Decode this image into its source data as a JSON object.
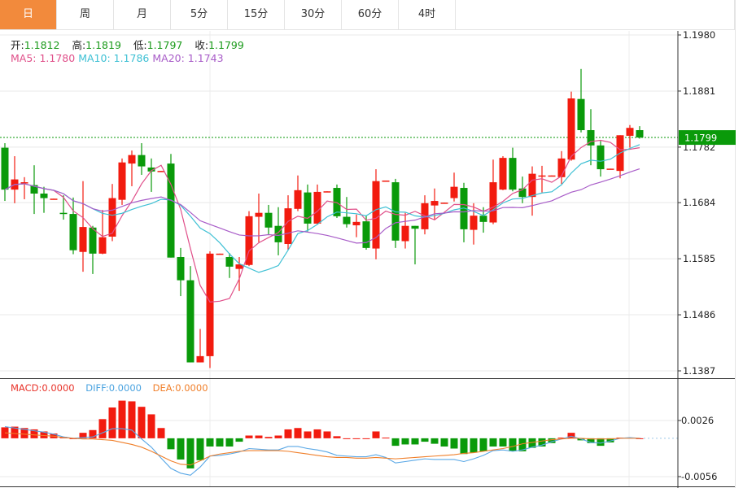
{
  "tabs": [
    {
      "label": "日",
      "active": true
    },
    {
      "label": "周",
      "active": false
    },
    {
      "label": "月",
      "active": false
    },
    {
      "label": "5分",
      "active": false
    },
    {
      "label": "15分",
      "active": false
    },
    {
      "label": "30分",
      "active": false
    },
    {
      "label": "60分",
      "active": false
    },
    {
      "label": "4时",
      "active": false
    }
  ],
  "ohlc_info": {
    "open_label": "开:",
    "open": "1.1812",
    "high_label": "高:",
    "high": "1.1819",
    "low_label": "低:",
    "low": "1.1797",
    "close_label": "收:",
    "close": "1.1799"
  },
  "ma_info": {
    "ma5": "MA5: 1.1780",
    "ma10": "MA10: 1.1786",
    "ma20": "MA20: 1.1743"
  },
  "macd_info": {
    "macd": "MACD:0.0000",
    "diff": "DIFF:0.0000",
    "dea": "DEA:0.0000"
  },
  "colors": {
    "up": "#f21b0f",
    "down": "#0a9a0a",
    "ma5": "#e0508a",
    "ma10": "#3ec0d4",
    "ma20": "#a85cc8",
    "diff": "#5aa8e6",
    "dea": "#f07f2a",
    "active_tab": "#f28a3c",
    "last_price": "#0a9a0a"
  },
  "chart_data": [
    {
      "type": "candlestick",
      "price_ticks": [
        "1.1980",
        "1.1881",
        "1.1782",
        "1.1684",
        "1.1585",
        "1.1486",
        "1.1387"
      ],
      "ylim": [
        1.1387,
        1.198
      ],
      "last_price_label": "1.1799",
      "grid": true,
      "ma_periods": [
        5,
        10,
        20
      ],
      "candles_ohlc": [
        [
          1.1781,
          1.1789,
          1.1687,
          1.1707
        ],
        [
          1.1707,
          1.1766,
          1.1683,
          1.1725
        ],
        [
          1.1719,
          1.1729,
          1.169,
          1.172
        ],
        [
          1.1715,
          1.175,
          1.1664,
          1.17
        ],
        [
          1.17,
          1.1712,
          1.1666,
          1.1692
        ],
        [
          1.169,
          1.1691,
          1.169,
          1.1691
        ],
        [
          1.1666,
          1.1697,
          1.1654,
          1.1664
        ],
        [
          1.1664,
          1.1693,
          1.1593,
          1.16
        ],
        [
          1.1597,
          1.1722,
          1.1562,
          1.1641
        ],
        [
          1.164,
          1.1643,
          1.1558,
          1.1594
        ],
        [
          1.1594,
          1.1671,
          1.1593,
          1.1623
        ],
        [
          1.1624,
          1.1717,
          1.1616,
          1.1692
        ],
        [
          1.1689,
          1.1762,
          1.168,
          1.1755
        ],
        [
          1.1753,
          1.1776,
          1.1713,
          1.1768
        ],
        [
          1.1768,
          1.1789,
          1.1733,
          1.1748
        ],
        [
          1.1746,
          1.1762,
          1.1703,
          1.1739
        ],
        [
          1.1739,
          1.174,
          1.1739,
          1.174
        ],
        [
          1.1753,
          1.177,
          1.1587,
          1.1587
        ],
        [
          1.1588,
          1.1604,
          1.1519,
          1.1547
        ],
        [
          1.1547,
          1.1572,
          1.1402,
          1.1402
        ],
        [
          1.1402,
          1.1461,
          1.1402,
          1.1413
        ],
        [
          1.1413,
          1.1598,
          1.1392,
          1.1594
        ],
        [
          1.1593,
          1.1594,
          1.1593,
          1.1594
        ],
        [
          1.1588,
          1.1595,
          1.1551,
          1.1571
        ],
        [
          1.1567,
          1.1588,
          1.1528,
          1.1575
        ],
        [
          1.1574,
          1.1669,
          1.1572,
          1.166
        ],
        [
          1.1659,
          1.17,
          1.1614,
          1.1666
        ],
        [
          1.1666,
          1.168,
          1.1628,
          1.164
        ],
        [
          1.1643,
          1.1676,
          1.1591,
          1.1614
        ],
        [
          1.1611,
          1.1697,
          1.1601,
          1.1674
        ],
        [
          1.1673,
          1.1732,
          1.1669,
          1.1706
        ],
        [
          1.1702,
          1.1716,
          1.1633,
          1.1647
        ],
        [
          1.1647,
          1.1716,
          1.1646,
          1.1703
        ],
        [
          1.1703,
          1.1704,
          1.1703,
          1.1704
        ],
        [
          1.171,
          1.1716,
          1.1657,
          1.166
        ],
        [
          1.1659,
          1.1694,
          1.164,
          1.1646
        ],
        [
          1.1644,
          1.1663,
          1.1623,
          1.165
        ],
        [
          1.1651,
          1.1661,
          1.1601,
          1.1604
        ],
        [
          1.1603,
          1.1743,
          1.1584,
          1.1722
        ],
        [
          1.1722,
          1.1723,
          1.1722,
          1.1723
        ],
        [
          1.172,
          1.1726,
          1.1604,
          1.1617
        ],
        [
          1.1616,
          1.1666,
          1.1603,
          1.1643
        ],
        [
          1.1643,
          1.1643,
          1.1575,
          1.1638
        ],
        [
          1.1637,
          1.1697,
          1.1628,
          1.1683
        ],
        [
          1.1679,
          1.1709,
          1.1654,
          1.1687
        ],
        [
          1.1683,
          1.1684,
          1.1683,
          1.1684
        ],
        [
          1.1692,
          1.1737,
          1.1686,
          1.1712
        ],
        [
          1.171,
          1.1719,
          1.1614,
          1.1637
        ],
        [
          1.1636,
          1.1683,
          1.161,
          1.1661
        ],
        [
          1.1661,
          1.1676,
          1.1631,
          1.165
        ],
        [
          1.1649,
          1.176,
          1.1646,
          1.172
        ],
        [
          1.1707,
          1.1766,
          1.1706,
          1.1763
        ],
        [
          1.1763,
          1.1781,
          1.1704,
          1.1707
        ],
        [
          1.1709,
          1.173,
          1.1683,
          1.1694
        ],
        [
          1.1694,
          1.1748,
          1.1661,
          1.1735
        ],
        [
          1.1731,
          1.1749,
          1.1702,
          1.1732
        ],
        [
          1.1731,
          1.1732,
          1.1731,
          1.1732
        ],
        [
          1.1729,
          1.1775,
          1.1717,
          1.1762
        ],
        [
          1.176,
          1.188,
          1.1758,
          1.1868
        ],
        [
          1.1867,
          1.192,
          1.1808,
          1.1812
        ],
        [
          1.1812,
          1.1849,
          1.175,
          1.1785
        ],
        [
          1.1785,
          1.1793,
          1.173,
          1.1743
        ],
        [
          1.1743,
          1.1744,
          1.1743,
          1.1744
        ],
        [
          1.174,
          1.1803,
          1.1727,
          1.1803
        ],
        [
          1.1802,
          1.1821,
          1.1781,
          1.1816
        ],
        [
          1.1812,
          1.1819,
          1.1797,
          1.1799
        ]
      ]
    },
    {
      "type": "macd",
      "ticks": [
        "0.0026",
        "-0.0056"
      ],
      "ylim": [
        -0.0056,
        0.0026
      ],
      "macd": [
        0.0016,
        0.0017,
        0.0015,
        0.0013,
        0.001,
        0.0007,
        0.0002,
        0.0,
        0.0008,
        0.0012,
        0.0028,
        0.0045,
        0.0055,
        0.0054,
        0.0046,
        0.0035,
        0.0015,
        -0.0016,
        -0.0031,
        -0.0044,
        -0.0032,
        -0.0012,
        -0.0012,
        -0.0012,
        -0.0005,
        0.0004,
        0.0004,
        0.0002,
        0.0004,
        0.0013,
        0.0015,
        0.001,
        0.0013,
        0.001,
        0.0003,
        0.0,
        0.0,
        0.0,
        0.001,
        0.0001,
        -0.0011,
        -0.0009,
        -0.0009,
        -0.0005,
        -0.0008,
        -0.0012,
        -0.0015,
        -0.0023,
        -0.0021,
        -0.0019,
        -0.0012,
        -0.0012,
        -0.0019,
        -0.0019,
        -0.0014,
        -0.0012,
        -0.0007,
        0.0001,
        0.0008,
        -0.0003,
        -0.0007,
        -0.0011,
        -0.0006,
        0.0001,
        0.0001,
        0.0
      ],
      "diff": [
        0.0017,
        0.0015,
        0.0013,
        0.0011,
        0.0009,
        0.0006,
        0.0002,
        0.0,
        0.0001,
        0.0002,
        0.0008,
        0.0014,
        0.0014,
        0.0012,
        -0.0001,
        -0.0013,
        -0.0029,
        -0.0044,
        -0.0051,
        -0.0054,
        -0.0042,
        -0.0026,
        -0.0025,
        -0.0023,
        -0.002,
        -0.0015,
        -0.0016,
        -0.0017,
        -0.0017,
        -0.0012,
        -0.0012,
        -0.0015,
        -0.0017,
        -0.002,
        -0.0025,
        -0.0026,
        -0.0027,
        -0.0027,
        -0.0024,
        -0.0028,
        -0.0036,
        -0.0034,
        -0.0032,
        -0.003,
        -0.0031,
        -0.0031,
        -0.0031,
        -0.0034,
        -0.003,
        -0.0025,
        -0.0018,
        -0.0017,
        -0.0019,
        -0.0017,
        -0.0013,
        -0.001,
        -0.0005,
        -0.0001,
        0.0003,
        -0.0001,
        -0.0006,
        -0.0007,
        -0.0004,
        0.0,
        0.0001,
        0.0
      ],
      "dea": [
        0.0008,
        0.0007,
        0.0006,
        0.0005,
        0.0004,
        0.0003,
        0.0001,
        0.0,
        -0.0001,
        -0.0001,
        -0.0002,
        -0.0003,
        -0.0006,
        -0.0009,
        -0.0013,
        -0.0019,
        -0.0026,
        -0.0033,
        -0.0038,
        -0.0039,
        -0.0033,
        -0.0026,
        -0.0023,
        -0.0021,
        -0.0019,
        -0.0018,
        -0.0018,
        -0.0018,
        -0.0018,
        -0.0019,
        -0.0021,
        -0.0023,
        -0.0025,
        -0.0027,
        -0.0028,
        -0.0028,
        -0.0029,
        -0.0029,
        -0.0028,
        -0.0029,
        -0.003,
        -0.0029,
        -0.0028,
        -0.0027,
        -0.0026,
        -0.0025,
        -0.0024,
        -0.0022,
        -0.0021,
        -0.0019,
        -0.0017,
        -0.0015,
        -0.0012,
        -0.0008,
        -0.0006,
        -0.0004,
        -0.0002,
        -0.0001,
        0.0,
        0.0,
        -0.0001,
        -0.0001,
        -0.0001,
        0.0,
        0.0,
        0.0
      ]
    }
  ]
}
